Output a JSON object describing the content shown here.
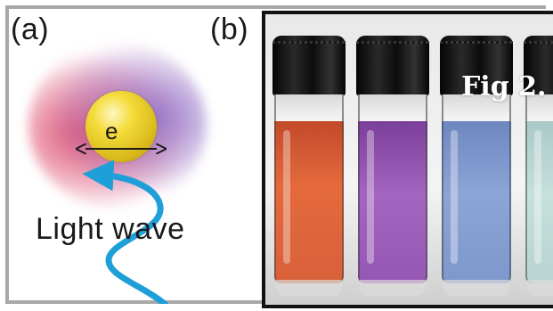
{
  "panel_a": {
    "label": "(a)",
    "electron_label": "e",
    "wave_label": "Light wave",
    "colors": {
      "sphere": "#f4dc3a",
      "glow_red": "#e1506e",
      "glow_violet": "#8c6ec8",
      "wave_arrow": "#1f9fd8"
    }
  },
  "panel_b": {
    "label": "(b)",
    "caption_overlay": "Fig 2.",
    "vial_colors": [
      "#e46a3c",
      "#a265c0",
      "#8ca4d6",
      "#c6e0dc"
    ]
  }
}
